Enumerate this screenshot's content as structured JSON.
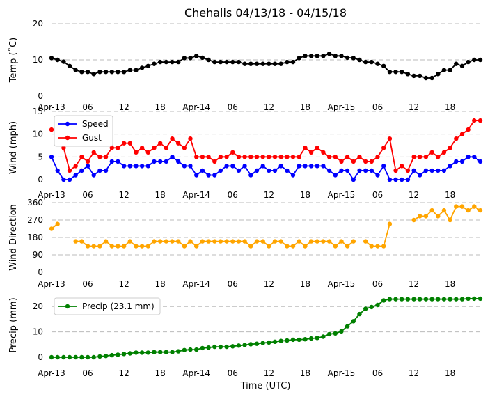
{
  "chart_data": {
    "title": "Chehalis 04/13/18 - 04/15/18",
    "xlabel": "Time (UTC)",
    "x_hours_start": 0,
    "x_hours_step": 1,
    "x_range": [
      0,
      71
    ],
    "x_ticks": [
      {
        "hour": 0,
        "label": "Apr-13"
      },
      {
        "hour": 6,
        "label": "06"
      },
      {
        "hour": 12,
        "label": "12"
      },
      {
        "hour": 18,
        "label": "18"
      },
      {
        "hour": 24,
        "label": "Apr-14"
      },
      {
        "hour": 30,
        "label": "06"
      },
      {
        "hour": 36,
        "label": "12"
      },
      {
        "hour": 42,
        "label": "18"
      },
      {
        "hour": 48,
        "label": "Apr-15"
      },
      {
        "hour": 54,
        "label": "06"
      },
      {
        "hour": 60,
        "label": "12"
      },
      {
        "hour": 66,
        "label": "18"
      }
    ],
    "panels": [
      {
        "name": "temp",
        "type": "line",
        "ylabel": "Temp (˚C)",
        "ylim": [
          0,
          20
        ],
        "yticks": [
          0,
          10,
          20
        ],
        "legend": null,
        "series": [
          {
            "name": "Temp",
            "color": "#000000",
            "values": [
              10.5,
              10,
              9.5,
              8.3,
              7.2,
              6.7,
              6.7,
              6.1,
              6.7,
              6.7,
              6.7,
              6.7,
              6.7,
              7.2,
              7.2,
              7.8,
              8.3,
              8.9,
              9.4,
              9.4,
              9.4,
              9.4,
              10.5,
              10.5,
              11.1,
              10.6,
              10,
              9.4,
              9.4,
              9.4,
              9.4,
              9.4,
              8.9,
              8.9,
              8.9,
              8.9,
              8.9,
              8.9,
              8.9,
              9.4,
              9.4,
              10.5,
              11.1,
              11.1,
              11.1,
              11.1,
              11.7,
              11.1,
              11.1,
              10.6,
              10.5,
              10,
              9.4,
              9.4,
              8.9,
              8.3,
              6.7,
              6.7,
              6.7,
              6.1,
              5.6,
              5.6,
              5,
              5,
              6.1,
              7.2,
              7.2,
              8.9,
              8.3,
              9.4,
              10,
              10
            ]
          }
        ]
      },
      {
        "name": "wind",
        "type": "line",
        "ylabel": "Wind (mph)",
        "ylim": [
          0,
          15
        ],
        "yticks": [
          0,
          5,
          10,
          15
        ],
        "legend": {
          "position": "top-left",
          "entries": [
            "Speed",
            "Gust"
          ]
        },
        "series": [
          {
            "name": "Speed",
            "color": "#0000ff",
            "values": [
              5,
              2,
              0,
              0,
              1,
              2,
              3,
              1,
              2,
              2,
              4,
              4,
              3,
              3,
              3,
              3,
              3,
              4,
              4,
              4,
              5,
              4,
              3,
              3,
              1,
              2,
              1,
              1,
              2,
              3,
              3,
              2,
              3,
              1,
              2,
              3,
              2,
              2,
              3,
              2,
              1,
              3,
              3,
              3,
              3,
              3,
              2,
              1,
              2,
              2,
              0,
              2,
              2,
              2,
              1,
              3,
              0,
              0,
              0,
              0,
              2,
              1,
              2,
              2,
              2,
              2,
              3,
              4,
              4,
              5,
              5,
              4
            ]
          },
          {
            "name": "Gust",
            "color": "#ff0000",
            "values": [
              11,
              11,
              7,
              2,
              3,
              5,
              4,
              6,
              5,
              5,
              7,
              7,
              8,
              8,
              6,
              7,
              6,
              7,
              8,
              7,
              9,
              8,
              7,
              9,
              5,
              5,
              5,
              4,
              5,
              5,
              6,
              5,
              5,
              5,
              5,
              5,
              5,
              5,
              5,
              5,
              5,
              5,
              7,
              6,
              7,
              6,
              5,
              5,
              4,
              5,
              4,
              5,
              4,
              4,
              5,
              7,
              9,
              2,
              3,
              2,
              5,
              5,
              5,
              6,
              5,
              6,
              7,
              9,
              10,
              11,
              13,
              13
            ]
          }
        ]
      },
      {
        "name": "direction",
        "type": "scatter-line",
        "ylabel": "Wind Direction",
        "ylim": [
          0,
          360
        ],
        "yticks": [
          0,
          90,
          180,
          270,
          360
        ],
        "legend": null,
        "series": [
          {
            "name": "Direction",
            "color": "#ffa500",
            "values": [
              225,
              250,
              null,
              null,
              160,
              160,
              135,
              135,
              135,
              160,
              135,
              135,
              135,
              160,
              135,
              135,
              135,
              160,
              160,
              160,
              160,
              160,
              135,
              160,
              135,
              160,
              160,
              160,
              160,
              160,
              160,
              160,
              160,
              135,
              160,
              160,
              135,
              160,
              160,
              135,
              135,
              160,
              135,
              160,
              160,
              160,
              160,
              135,
              160,
              135,
              160,
              null,
              160,
              135,
              135,
              135,
              250,
              null,
              null,
              null,
              270,
              290,
              290,
              320,
              290,
              320,
              270,
              340,
              340,
              320,
              340,
              320
            ]
          }
        ]
      },
      {
        "name": "precip",
        "type": "line",
        "ylabel": "Precip (mm)",
        "ylim": [
          0,
          25
        ],
        "yticks": [
          0,
          10,
          20
        ],
        "legend": {
          "position": "top-left",
          "entries": [
            "Precip (23.1 mm)"
          ]
        },
        "series": [
          {
            "name": "Precip (23.1 mm)",
            "color": "#008000",
            "values": [
              0,
              0,
              0,
              0,
              0,
              0,
              0,
              0,
              0.3,
              0.5,
              0.8,
              1,
              1.3,
              1.5,
              1.8,
              1.8,
              1.8,
              2,
              2,
              2,
              2,
              2.3,
              2.8,
              3,
              3,
              3.6,
              3.8,
              4.1,
              4.1,
              4.1,
              4.3,
              4.6,
              4.8,
              5.1,
              5.3,
              5.6,
              5.8,
              6.1,
              6.4,
              6.6,
              6.9,
              6.9,
              7.1,
              7.4,
              7.6,
              8.1,
              9.1,
              9.4,
              10.2,
              12.2,
              14.2,
              17,
              19.1,
              19.8,
              20.6,
              22.4,
              22.9,
              22.9,
              22.9,
              22.9,
              22.9,
              22.9,
              22.9,
              22.9,
              22.9,
              22.9,
              22.9,
              22.9,
              22.9,
              23.1,
              23.1,
              23.1
            ]
          }
        ]
      }
    ]
  }
}
